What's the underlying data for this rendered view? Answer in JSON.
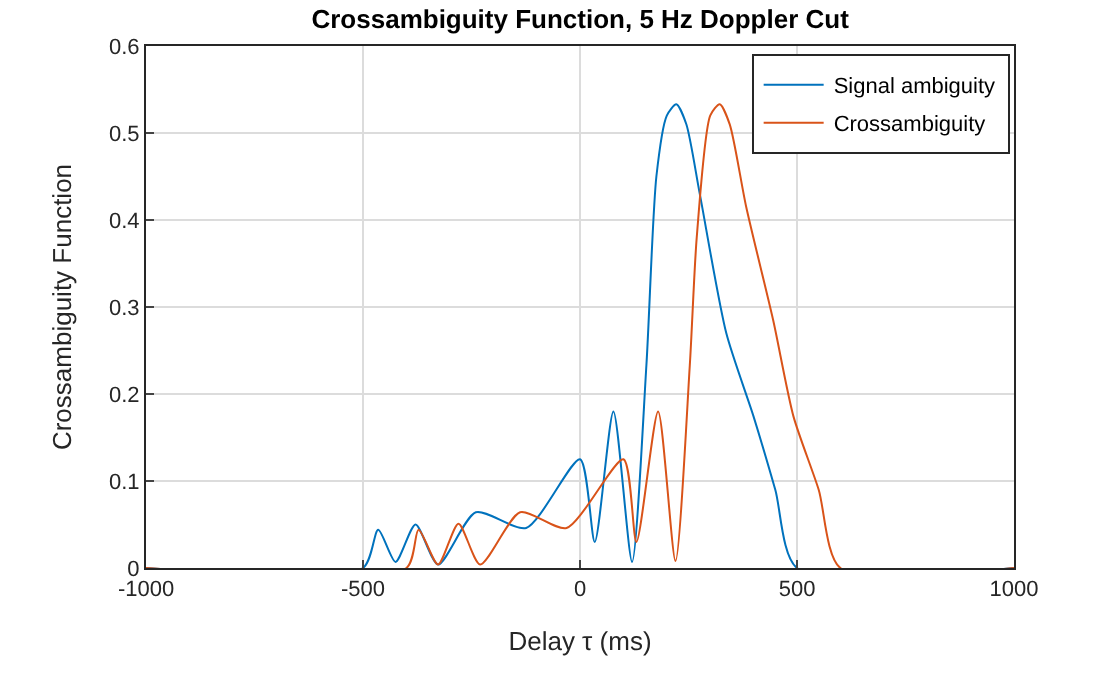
{
  "chart_data": {
    "type": "line",
    "title": "Crossambiguity Function, 5 Hz Doppler Cut",
    "xlabel": "Delay τ (ms)",
    "ylabel": "Crossambiguity Function",
    "series": [
      {
        "name": "Signal ambiguity",
        "color": "#0072bd",
        "x": [
          -1000,
          -500,
          -465,
          -425,
          -379,
          -327,
          -240,
          -124,
          0,
          34,
          77,
          120,
          153,
          176,
          200,
          222,
          245,
          276,
          337,
          400,
          450,
          500,
          1000
        ],
        "values": [
          0,
          0,
          0.044,
          0.007,
          0.05,
          0.004,
          0.064,
          0.046,
          0.125,
          0.03,
          0.18,
          0.007,
          0.233,
          0.45,
          0.52,
          0.533,
          0.51,
          0.43,
          0.27,
          0.174,
          0.09,
          0,
          0
        ]
      },
      {
        "name": "Crossambiguity",
        "color": "#d95319",
        "x": [
          -1000,
          -400,
          -372,
          -327,
          -280,
          -230,
          -138,
          -31,
          100,
          130,
          180,
          220,
          253,
          269,
          300,
          322,
          345,
          383,
          445,
          492,
          550,
          600,
          1000
        ],
        "values": [
          0,
          0,
          0.044,
          0.004,
          0.051,
          0.004,
          0.064,
          0.046,
          0.125,
          0.03,
          0.18,
          0.008,
          0.233,
          0.38,
          0.52,
          0.533,
          0.51,
          0.415,
          0.285,
          0.174,
          0.09,
          0,
          0
        ]
      }
    ],
    "xlim": [
      -1000,
      1000
    ],
    "xticks": [
      -1000,
      -500,
      0,
      500,
      1000
    ],
    "ylim": [
      0,
      0.6
    ],
    "yticks": [
      0,
      0.1,
      0.2,
      0.3,
      0.4,
      0.5,
      0.6
    ],
    "grid": true,
    "legend": "top right",
    "marker": "none",
    "line_style": "solid"
  }
}
